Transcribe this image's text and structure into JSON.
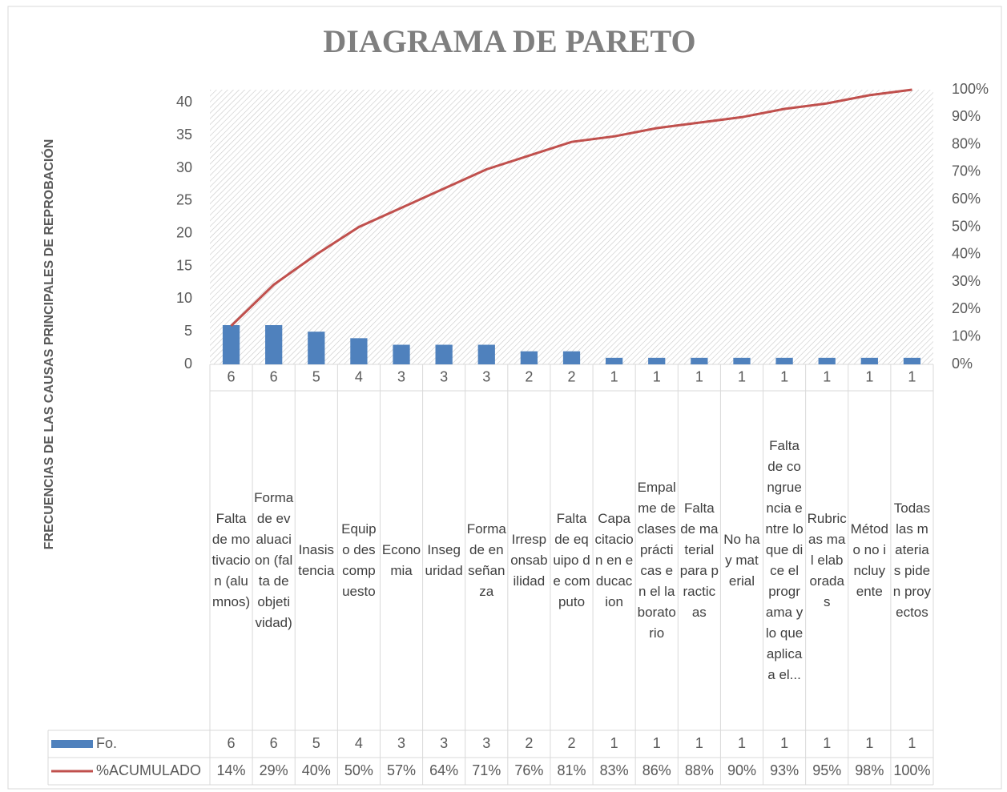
{
  "chart_data": {
    "type": "bar",
    "title": "DIAGRAMA DE PARETO",
    "y_label": "FRECUENCIAS DE LAS CAUSAS PRINCIPALES DE REPROBACIÓN",
    "categories": [
      "Falta de motivacion (alumnos)",
      "Forma de evaluacion (falta de objetividad)",
      "Inasistencia",
      "Equipo descompuesto",
      "Economia",
      "Inseguridad",
      "Forma de enseñanza",
      "Irresponsabilidad",
      "Falta de equipo de computo",
      "Capacitacion en educacion",
      "Empalme de clases prácticas en el laboratorio",
      "Falta de material para practicas",
      "No hay material",
      "Falta de congruencia entre lo que dice el programa y lo que aplica a el...",
      "Rubricas mal elaboradas",
      "Método no incluyente",
      "Todas las materias piden proyectos"
    ],
    "series": [
      {
        "name": "Fo.",
        "color": "#4f81bd",
        "values": [
          6,
          6,
          5,
          4,
          3,
          3,
          3,
          2,
          2,
          1,
          1,
          1,
          1,
          1,
          1,
          1,
          1
        ]
      },
      {
        "name": "%ACUMULADO",
        "color": "#c0504d",
        "type": "line",
        "axis": "y2",
        "values": [
          14,
          29,
          40,
          50,
          57,
          64,
          71,
          76,
          81,
          83,
          86,
          88,
          90,
          93,
          95,
          98,
          100
        ],
        "value_labels": [
          "14%",
          "29%",
          "40%",
          "50%",
          "57%",
          "64%",
          "71%",
          "76%",
          "81%",
          "83%",
          "86%",
          "88%",
          "90%",
          "93%",
          "95%",
          "98%",
          "100%"
        ]
      }
    ],
    "ylim": [
      0,
      42
    ],
    "yticks": [
      0,
      5,
      10,
      15,
      20,
      25,
      30,
      35,
      40
    ],
    "y2lim": [
      0,
      100
    ],
    "y2ticks": [
      {
        "value": 0,
        "label": "0%"
      },
      {
        "value": 10,
        "label": "10%"
      },
      {
        "value": 20,
        "label": "20%"
      },
      {
        "value": 30,
        "label": "30%"
      },
      {
        "value": 40,
        "label": "40%"
      },
      {
        "value": 50,
        "label": "50%"
      },
      {
        "value": 60,
        "label": "60%"
      },
      {
        "value": 70,
        "label": "70%"
      },
      {
        "value": 80,
        "label": "80%"
      },
      {
        "value": 90,
        "label": "90%"
      },
      {
        "value": 100,
        "label": "100%"
      }
    ]
  }
}
